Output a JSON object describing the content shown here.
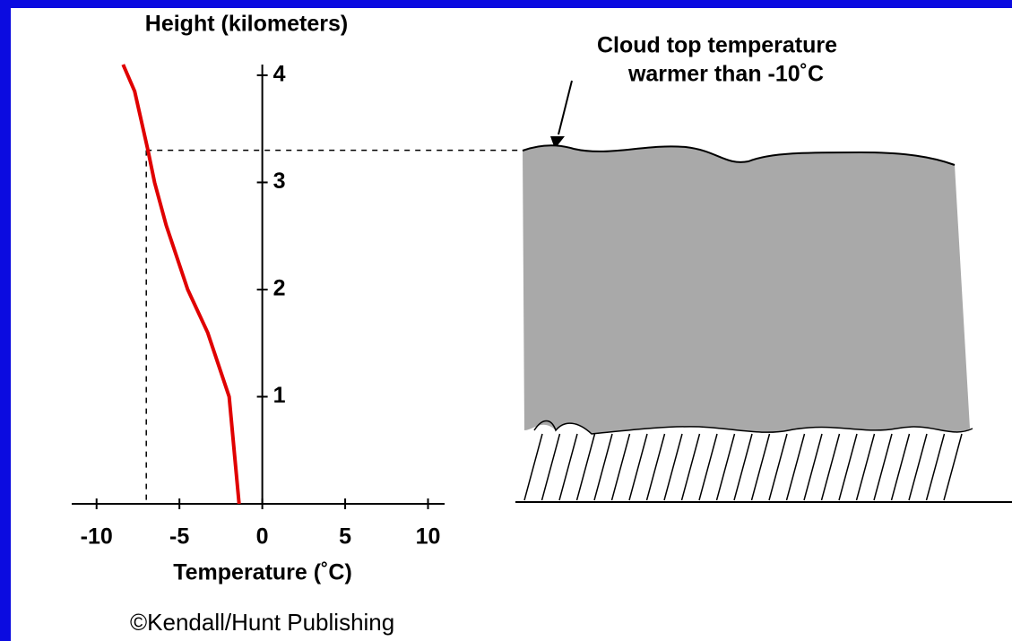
{
  "chart_data": {
    "type": "line",
    "x_label": "Temperature (˚C)",
    "y_label": "Height (kilometers)",
    "annotation": [
      "Cloud top temperature",
      "warmer than -10˚C"
    ],
    "credit": "©Kendall/Hunt Publishing",
    "x": [
      -1.4,
      -2.0,
      -3.3,
      -4.5,
      -5.8,
      -6.5,
      -6.9,
      -7.7,
      -8.4
    ],
    "series": [
      {
        "color": "#e00000",
        "values": [
          0,
          1,
          1.6,
          2,
          2.6,
          3,
          3.3,
          3.85,
          4.1
        ]
      }
    ],
    "cloud_top": {
      "temperature": -7,
      "height": 3.3
    },
    "xlim": [
      -11.5,
      11
    ],
    "ylim": [
      0,
      4.1
    ],
    "xticks": [
      -10,
      -5,
      0,
      5,
      10
    ],
    "yticks": [
      1,
      2,
      3,
      4
    ]
  }
}
